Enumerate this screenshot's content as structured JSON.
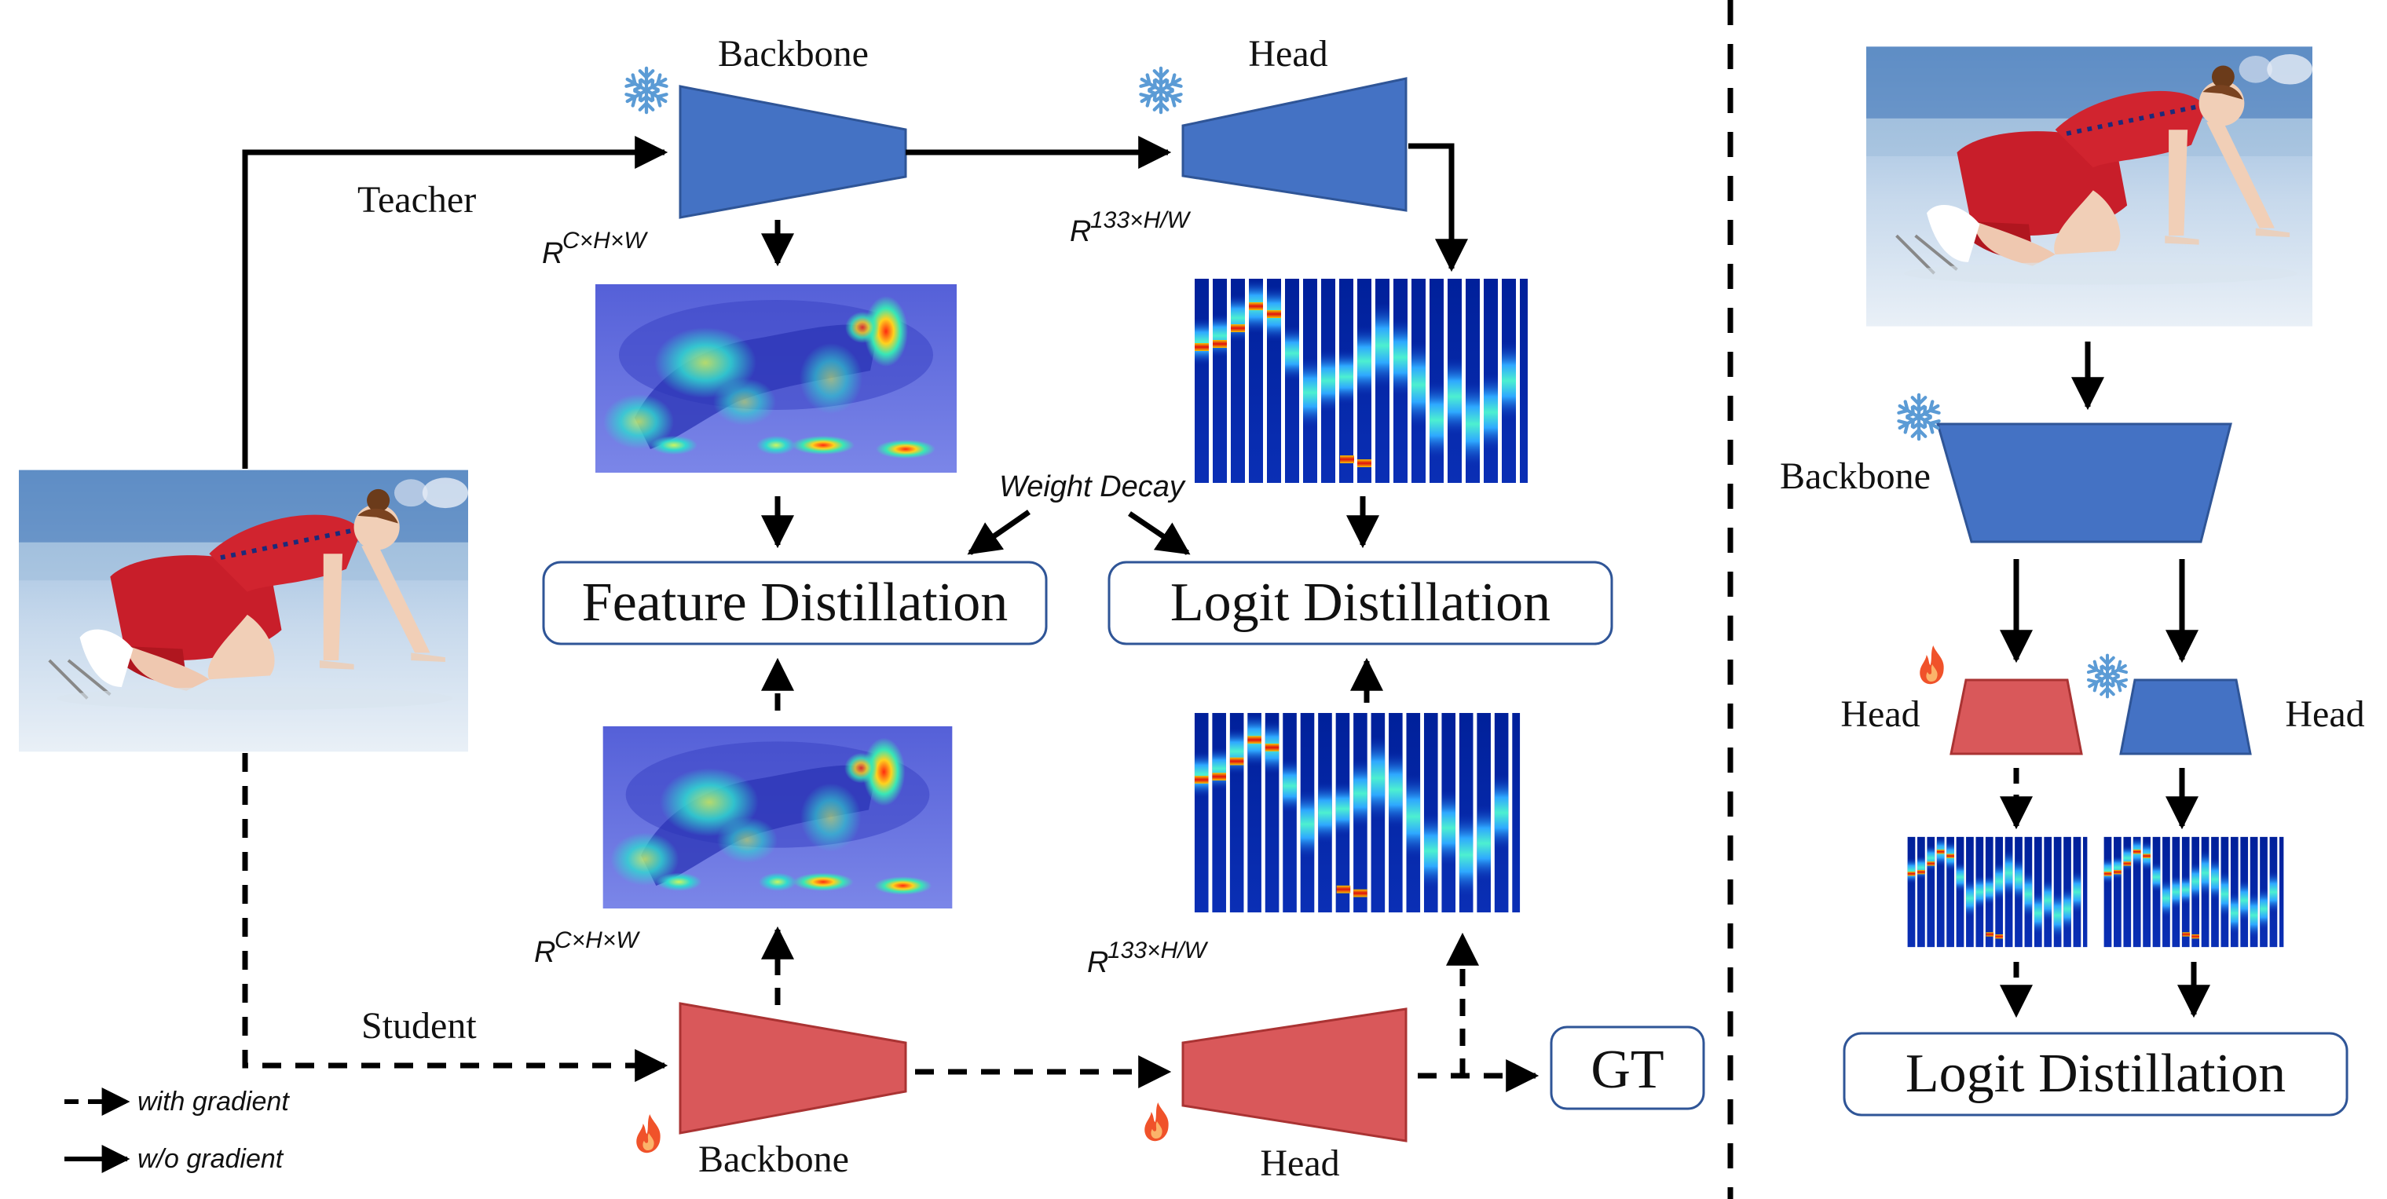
{
  "labels": {
    "teacher": "Teacher",
    "student": "Student",
    "backbone_top": "Backbone",
    "head_top": "Head",
    "backbone_bottom": "Backbone",
    "head_bottom": "Head",
    "weight_decay": "Weight Decay",
    "feature_distillation": "Feature Distillation",
    "logit_distillation": "Logit Distillation",
    "gt": "GT",
    "dim_feat_teacher": "R",
    "dim_feat_teacher_sup": "C×H×W",
    "dim_logit_teacher": "R",
    "dim_logit_teacher_sup": "133×H/W",
    "dim_feat_student": "R",
    "dim_feat_student_sup": "C×H×W",
    "dim_logit_student": "R",
    "dim_logit_student_sup": "133×H/W"
  },
  "legend": {
    "dashed": "with gradient",
    "solid": "w/o gradient"
  },
  "right_panel": {
    "backbone": "Backbone",
    "head_left": "Head",
    "head_right": "Head",
    "logit_distillation": "Logit Distillation"
  },
  "icons": {
    "frozen": "snowflake-icon",
    "trainable": "flame-icon"
  },
  "colors": {
    "teacher_blue": "#4472c4",
    "student_red": "#d9585a",
    "box_border": "#2f5597",
    "snow": "#5b9bd5",
    "flame": "#f0522a"
  }
}
